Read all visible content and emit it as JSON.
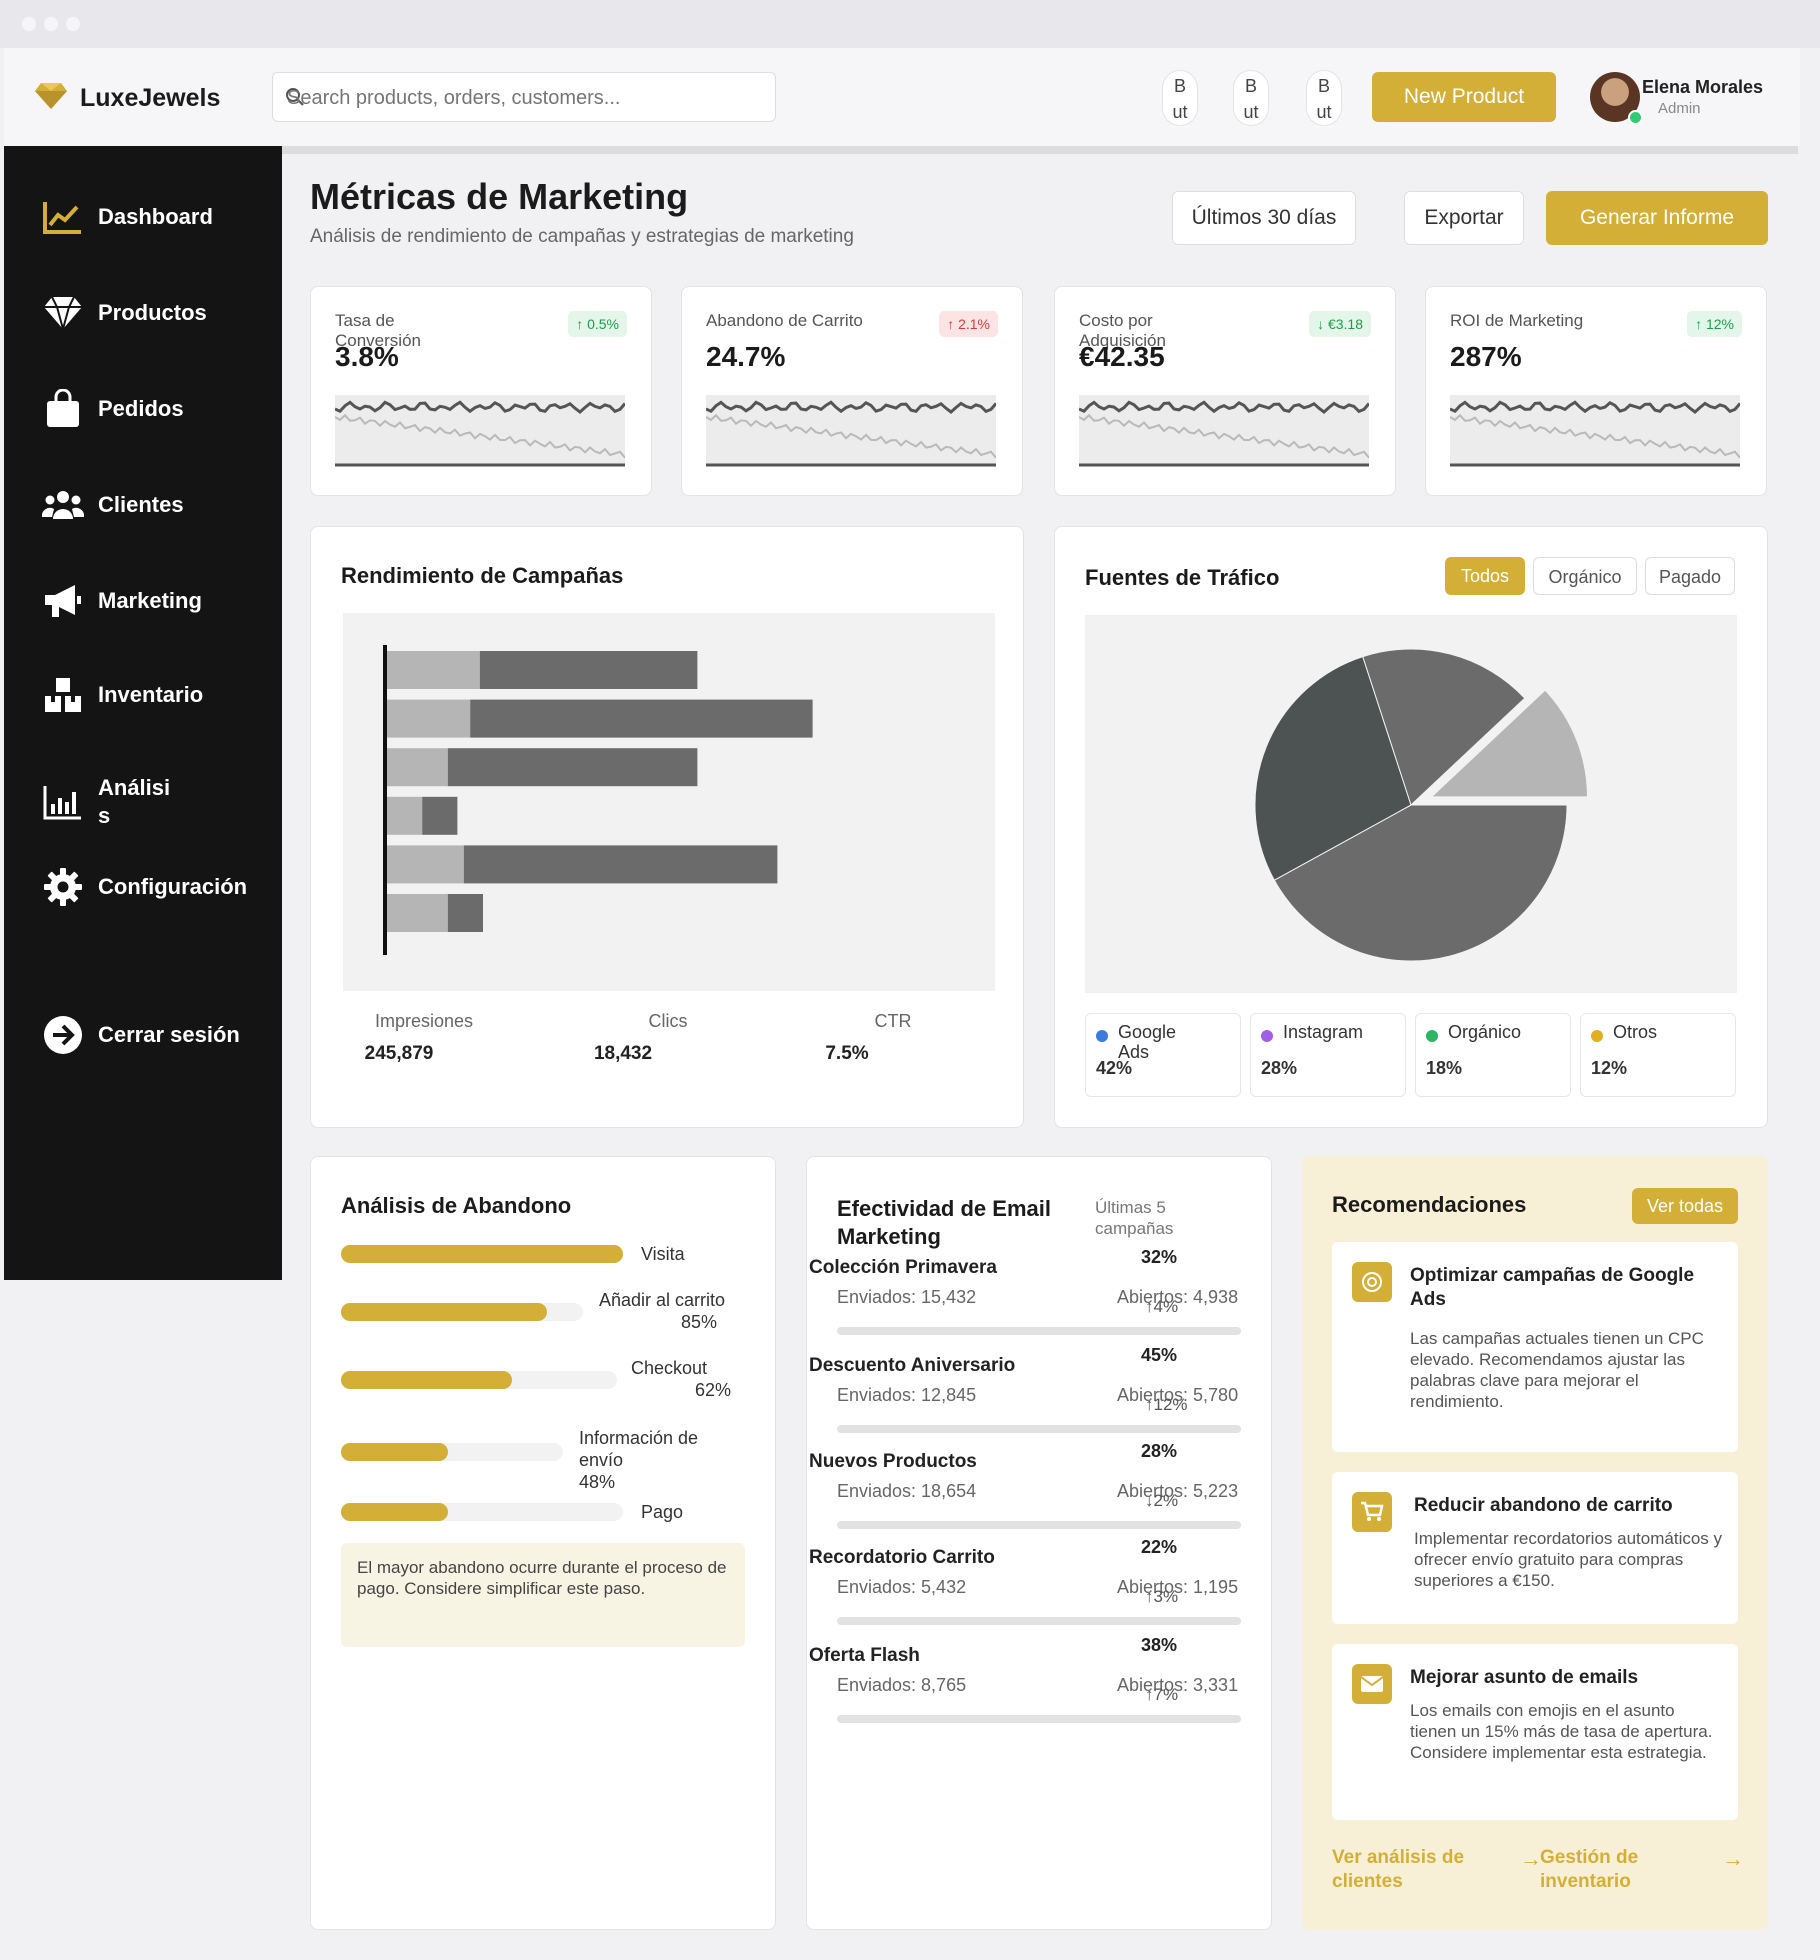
{
  "brand": {
    "name": "LuxeJewels",
    "accent": "#d4af37"
  },
  "search": {
    "placeholder": "Search products, orders, customers..."
  },
  "topbar": {
    "mini_buttons": [
      "B\nut",
      "B\nut",
      "B\nut"
    ],
    "new_product": "New Product",
    "user": {
      "name": "Elena Morales",
      "role": "Admin"
    }
  },
  "sidebar": {
    "items": [
      {
        "label": "Dashboard",
        "icon": "chart-line-icon"
      },
      {
        "label": "Productos",
        "icon": "diamond-icon"
      },
      {
        "label": "Pedidos",
        "icon": "shopping-bag-icon"
      },
      {
        "label": "Clientes",
        "icon": "users-icon"
      },
      {
        "label": "Marketing",
        "icon": "megaphone-icon"
      },
      {
        "label": "Inventario",
        "icon": "boxes-icon"
      },
      {
        "label": "Análisi\ns",
        "icon": "bar-chart-icon"
      },
      {
        "label": "Configuración",
        "icon": "gear-icon"
      }
    ],
    "logout": "Cerrar sesión"
  },
  "header": {
    "title": "Métricas de Marketing",
    "subtitle": "Análisis de rendimiento de campañas y estrategias de marketing",
    "period": "Últimos 30 días",
    "export": "Exportar",
    "report": "Generar Informe"
  },
  "kpis": [
    {
      "label": "Tasa de Conversión",
      "value": "3.8%",
      "delta": "0.5%",
      "trend": "up",
      "status": "good"
    },
    {
      "label": "Abandono de Carrito",
      "value": "24.7%",
      "delta": "2.1%",
      "trend": "up",
      "status": "bad"
    },
    {
      "label": "Costo por Adquisición",
      "value": "€42.35",
      "delta": "€3.18",
      "trend": "down",
      "status": "good"
    },
    {
      "label": "ROI de Marketing",
      "value": "287%",
      "delta": "12%",
      "trend": "up",
      "status": "good"
    }
  ],
  "campaigns": {
    "title": "Rendimiento de Campañas",
    "stats": [
      {
        "label": "Impresiones",
        "value": "245,879"
      },
      {
        "label": "Clics",
        "value": "18,432"
      },
      {
        "label": "CTR",
        "value": "7.5%"
      }
    ]
  },
  "chart_data": [
    {
      "type": "bar",
      "orientation": "horizontal",
      "stacked": true,
      "categories": [
        "",
        "",
        "",
        "",
        "",
        ""
      ],
      "series": [
        {
          "values": [
            29,
            26,
            19,
            11,
            24,
            19
          ],
          "color": "#b5b5b5"
        },
        {
          "values": [
            68,
            107,
            78,
            11,
            98,
            11
          ],
          "color": "#6b6b6b"
        }
      ]
    },
    {
      "type": "pie",
      "labels": [
        "Google Ads",
        "Instagram",
        "Orgánico",
        "Otros"
      ],
      "values": [
        42,
        28,
        18,
        12
      ],
      "slice_colors": [
        "#6b6b6b",
        "#4d5352",
        "#6b6b6b",
        "#b5b5b5"
      ]
    }
  ],
  "traffic": {
    "title": "Fuentes de Tráfico",
    "filters": [
      "Todos",
      "Orgánico",
      "Pagado"
    ],
    "legend": [
      {
        "name": "Google Ads",
        "pct": "42%",
        "color": "#3b7be0"
      },
      {
        "name": "Instagram",
        "pct": "28%",
        "color": "#a35ee6"
      },
      {
        "name": "Orgánico",
        "pct": "18%",
        "color": "#2db564"
      },
      {
        "name": "Otros",
        "pct": "12%",
        "color": "#e0b020"
      }
    ]
  },
  "abandon": {
    "title": "Análisis de Abandono",
    "steps": [
      {
        "label": "Visita",
        "value": "100%",
        "fill": 1.0
      },
      {
        "label": "Añadir al carrito",
        "value": "85%",
        "fill": 0.85
      },
      {
        "label": "Checkout",
        "value": "62%",
        "fill": 0.62
      },
      {
        "label": "Información de envío",
        "value": "48%",
        "fill": 0.48
      },
      {
        "label": "Pago",
        "value": "",
        "fill": 0.38
      }
    ],
    "note": "El mayor abandono ocurre durante el proceso de pago. Considere simplificar este paso."
  },
  "email": {
    "title": "Efectividad de Email Marketing",
    "subtitle": "Últimas 5 campañas",
    "campaigns": [
      {
        "name": "Colección Primavera",
        "sent": "Enviados: 15,432",
        "opened": "Abiertos: 4,938",
        "pct": "32%",
        "delta": "↑4%"
      },
      {
        "name": "Descuento Aniversario",
        "sent": "Enviados: 12,845",
        "opened": "Abiertos: 5,780",
        "pct": "45%",
        "delta": "↑12%"
      },
      {
        "name": "Nuevos Productos",
        "sent": "Enviados: 18,654",
        "opened": "Abiertos: 5,223",
        "pct": "28%",
        "delta": "↓2%"
      },
      {
        "name": "Recordatorio Carrito",
        "sent": "Enviados: 5,432",
        "opened": "Abiertos: 1,195",
        "pct": "22%",
        "delta": "↑3%"
      },
      {
        "name": "Oferta Flash",
        "sent": "Enviados: 8,765",
        "opened": "Abiertos: 3,331",
        "pct": "38%",
        "delta": "↑7%"
      }
    ]
  },
  "recs": {
    "title": "Recomendaciones",
    "view_all": "Ver todas",
    "items": [
      {
        "title": "Optimizar campañas de Google Ads",
        "text": "Las campañas actuales tienen un CPC elevado. Recomendamos ajustar las palabras clave para mejorar el rendimiento.",
        "icon": "target-icon"
      },
      {
        "title": "Reducir abandono de carrito",
        "text": "Implementar recordatorios automáticos y ofrecer envío gratuito para compras superiores a €150.",
        "icon": "cart-icon"
      },
      {
        "title": "Mejorar asunto de emails",
        "text": "Los emails con emojis en el asunto tienen un 15% más de tasa de apertura. Considere implementar esta estrategia.",
        "icon": "mail-icon"
      }
    ],
    "links": [
      "Ver análisis de clientes",
      "Gestión de inventario"
    ]
  }
}
